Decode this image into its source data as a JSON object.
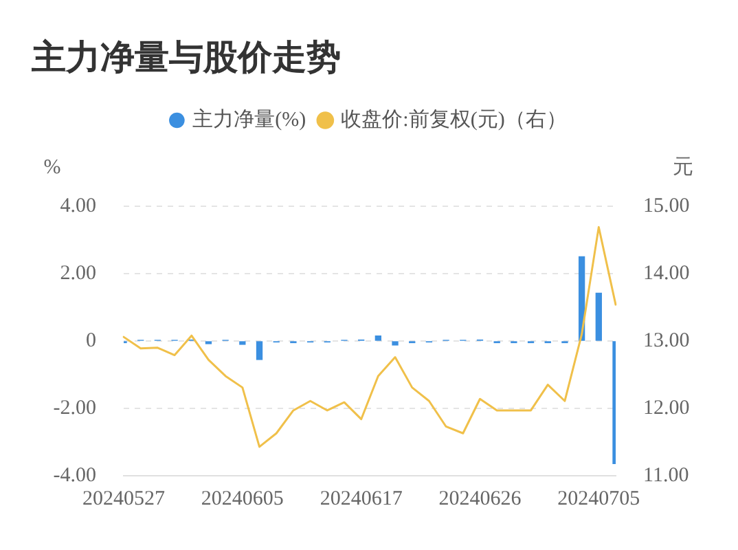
{
  "chart_data": {
    "type": "bar",
    "title": "主力净量与股价走势",
    "ylabel": "%",
    "y2label": "元",
    "categories": [
      "20240527",
      null,
      null,
      null,
      null,
      null,
      null,
      "20240605",
      null,
      null,
      null,
      null,
      null,
      null,
      "20240617",
      null,
      null,
      null,
      null,
      null,
      null,
      "20240626",
      null,
      null,
      null,
      null,
      null,
      null,
      "20240705",
      null
    ],
    "series": [
      {
        "name": "主力净量(%)",
        "color": "#3b8fe0",
        "values": [
          -0.05,
          0.02,
          0.02,
          0.02,
          0.03,
          -0.08,
          0.02,
          -0.1,
          -0.55,
          -0.03,
          -0.05,
          -0.03,
          -0.03,
          0.02,
          0.03,
          0.15,
          -0.12,
          -0.05,
          -0.03,
          0.02,
          0.02,
          0.03,
          -0.05,
          -0.05,
          -0.05,
          -0.05,
          -0.05,
          2.5,
          1.42,
          -3.64
        ]
      },
      {
        "name": "收盘价:前复权(元)（右）",
        "type": "line",
        "axis": "y2",
        "color": "#f0c04a",
        "values": [
          13.06,
          12.89,
          12.9,
          12.79,
          13.08,
          12.72,
          12.48,
          12.31,
          11.43,
          11.63,
          11.97,
          12.11,
          11.97,
          12.09,
          11.84,
          12.48,
          12.76,
          12.31,
          12.11,
          11.73,
          11.63,
          12.14,
          11.97,
          11.97,
          11.97,
          12.35,
          12.11,
          13.1,
          14.69,
          13.54
        ]
      }
    ],
    "ylim": [
      -4,
      4
    ],
    "yticks": [
      {
        "value": -4,
        "label": "-4.00"
      },
      {
        "value": -2,
        "label": "-2.00"
      },
      0,
      {
        "value": 2,
        "label": "2.00"
      },
      {
        "value": 4,
        "label": "4.00"
      }
    ],
    "y2lim": [
      11,
      15
    ],
    "y2ticks": [
      {
        "value": 11,
        "label": "11.00"
      },
      {
        "value": 12,
        "label": "12.00"
      },
      {
        "value": 13,
        "label": "13.00"
      },
      {
        "value": 14,
        "label": "14.00"
      },
      {
        "value": 15,
        "label": "15.00"
      }
    ],
    "grid": "y",
    "legend": "top",
    "marker": "none"
  }
}
